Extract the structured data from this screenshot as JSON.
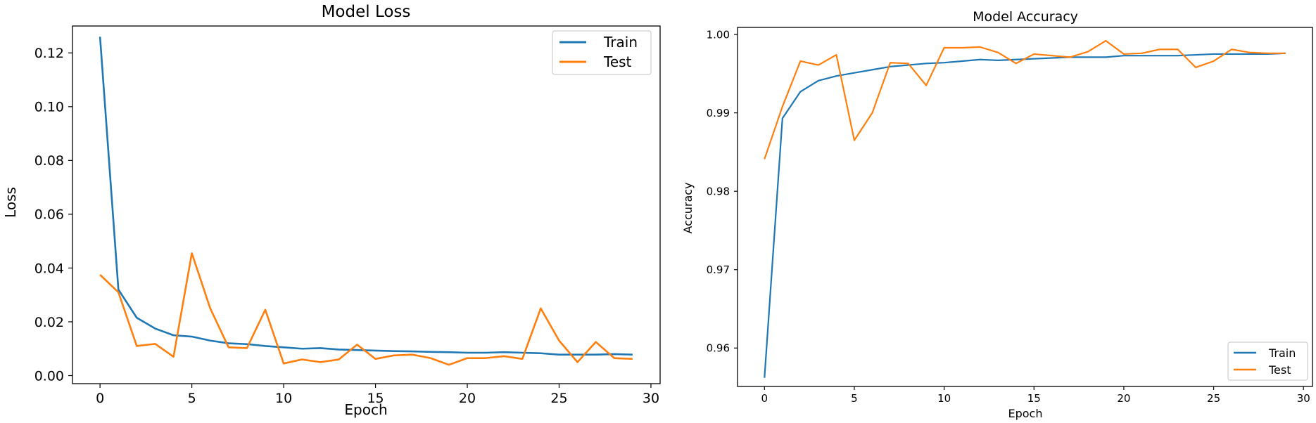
{
  "colors": {
    "train": "#1f77b4",
    "test": "#ff7f0e"
  },
  "chart_data": [
    {
      "type": "line",
      "title": "Model Loss",
      "xlabel": "Epoch",
      "ylabel": "Loss",
      "xlim": [
        -1.5,
        30.5
      ],
      "ylim": [
        -0.003,
        0.13
      ],
      "xticks": [
        0,
        5,
        10,
        15,
        20,
        25,
        30
      ],
      "xtick_labels": [
        "0",
        "5",
        "10",
        "15",
        "20",
        "25",
        "30"
      ],
      "yticks": [
        0.0,
        0.02,
        0.04,
        0.06,
        0.08,
        0.1,
        0.12
      ],
      "ytick_labels": [
        "0.00",
        "0.02",
        "0.04",
        "0.06",
        "0.08",
        "0.10",
        "0.12"
      ],
      "legend_position": "top-right",
      "x": [
        0,
        1,
        2,
        3,
        4,
        5,
        6,
        7,
        8,
        9,
        10,
        11,
        12,
        13,
        14,
        15,
        16,
        17,
        18,
        19,
        20,
        21,
        22,
        23,
        24,
        25,
        26,
        27,
        28,
        29
      ],
      "series": [
        {
          "name": "Train",
          "color_key": "train",
          "values": [
            0.126,
            0.032,
            0.0215,
            0.0175,
            0.015,
            0.0145,
            0.013,
            0.012,
            0.0117,
            0.011,
            0.0105,
            0.01,
            0.0102,
            0.0097,
            0.0095,
            0.0093,
            0.0091,
            0.009,
            0.0088,
            0.0087,
            0.0085,
            0.0085,
            0.0087,
            0.0085,
            0.0083,
            0.0078,
            0.0078,
            0.0078,
            0.008,
            0.0078
          ]
        },
        {
          "name": "Test",
          "color_key": "test",
          "values": [
            0.0375,
            0.031,
            0.011,
            0.0118,
            0.007,
            0.0455,
            0.025,
            0.0105,
            0.0102,
            0.0245,
            0.0045,
            0.006,
            0.005,
            0.006,
            0.0115,
            0.0062,
            0.0075,
            0.0078,
            0.0065,
            0.004,
            0.0065,
            0.0065,
            0.0072,
            0.0062,
            0.025,
            0.013,
            0.005,
            0.0125,
            0.0065,
            0.0062
          ]
        }
      ]
    },
    {
      "type": "line",
      "title": "Model Accuracy",
      "xlabel": "Epoch",
      "ylabel": "Accuracy",
      "xlim": [
        -1.5,
        30.5
      ],
      "ylim": [
        0.9551,
        1.0009
      ],
      "xticks": [
        0,
        5,
        10,
        15,
        20,
        25,
        30
      ],
      "xtick_labels": [
        "0",
        "5",
        "10",
        "15",
        "20",
        "25",
        "30"
      ],
      "yticks": [
        0.96,
        0.97,
        0.98,
        0.99,
        1.0
      ],
      "ytick_labels": [
        "0.96",
        "0.97",
        "0.98",
        "0.99",
        "1.00"
      ],
      "legend_position": "bottom-right",
      "x": [
        0,
        1,
        2,
        3,
        4,
        5,
        6,
        7,
        8,
        9,
        10,
        11,
        12,
        13,
        14,
        15,
        16,
        17,
        18,
        19,
        20,
        21,
        22,
        23,
        24,
        25,
        26,
        27,
        28,
        29
      ],
      "series": [
        {
          "name": "Train",
          "color_key": "train",
          "values": [
            0.9562,
            0.9893,
            0.9927,
            0.9941,
            0.9947,
            0.9951,
            0.9955,
            0.9959,
            0.9961,
            0.9963,
            0.9964,
            0.9966,
            0.9968,
            0.9967,
            0.9968,
            0.9969,
            0.997,
            0.9971,
            0.9971,
            0.9971,
            0.9973,
            0.9973,
            0.9973,
            0.9973,
            0.9974,
            0.9975,
            0.9975,
            0.9975,
            0.9975,
            0.9976
          ]
        },
        {
          "name": "Test",
          "color_key": "test",
          "values": [
            0.9841,
            0.9908,
            0.9966,
            0.9961,
            0.9974,
            0.9865,
            0.99,
            0.9964,
            0.9963,
            0.9935,
            0.9983,
            0.9983,
            0.9984,
            0.9977,
            0.9963,
            0.9975,
            0.9973,
            0.9971,
            0.9978,
            0.9992,
            0.9975,
            0.9976,
            0.9981,
            0.9981,
            0.9958,
            0.9966,
            0.9981,
            0.9977,
            0.9976,
            0.9976
          ]
        }
      ]
    }
  ]
}
